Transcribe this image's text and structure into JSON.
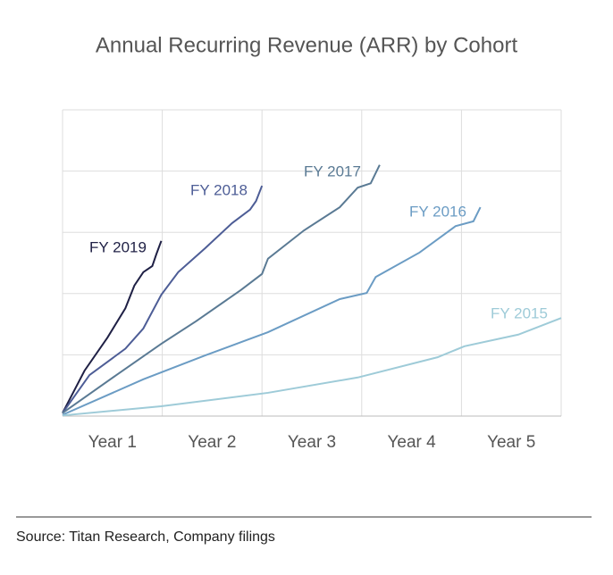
{
  "chart_data": {
    "type": "line",
    "title": "Annual Recurring Revenue (ARR) by Cohort",
    "source": "Source: Titan Research, Company filings",
    "x_labels": [
      "Year 1",
      "Year 2",
      "Year 3",
      "Year 4",
      "Year 5"
    ],
    "xlim": [
      0,
      5
    ],
    "xticks": [
      0,
      1,
      2,
      3,
      4,
      5
    ],
    "ylim": [
      0,
      5
    ],
    "yticks": [
      0,
      1,
      2,
      3,
      4,
      5
    ],
    "grid": true,
    "show_y_tick_labels": false,
    "series": [
      {
        "name": "FY 2019",
        "color": "#1f2045",
        "x": [
          0,
          0.22,
          0.45,
          0.63,
          0.72,
          0.81,
          0.9,
          0.94,
          0.99
        ],
        "values": [
          0.05,
          0.74,
          1.28,
          1.76,
          2.13,
          2.35,
          2.45,
          2.64,
          2.86
        ]
      },
      {
        "name": "FY 2018",
        "color": "#4d5d96",
        "x": [
          0,
          0.27,
          0.63,
          0.81,
          0.99,
          1.16,
          1.43,
          1.7,
          1.88,
          1.94,
          2.0
        ],
        "values": [
          0.05,
          0.67,
          1.1,
          1.43,
          1.98,
          2.35,
          2.74,
          3.15,
          3.37,
          3.51,
          3.76
        ]
      },
      {
        "name": "FY 2017",
        "color": "#5a7a94",
        "x": [
          0,
          0.54,
          0.99,
          1.34,
          1.79,
          2.0,
          2.06,
          2.42,
          2.78,
          2.96,
          3.09,
          3.18
        ],
        "values": [
          0.05,
          0.67,
          1.18,
          1.55,
          2.06,
          2.32,
          2.57,
          3.03,
          3.41,
          3.73,
          3.8,
          4.1
        ]
      },
      {
        "name": "FY 2016",
        "color": "#6b9cc4",
        "x": [
          0,
          0.81,
          1.43,
          2.06,
          2.78,
          3.05,
          3.14,
          3.58,
          3.94,
          4.12,
          4.19
        ],
        "values": [
          0.02,
          0.6,
          0.99,
          1.37,
          1.91,
          2.01,
          2.27,
          2.67,
          3.1,
          3.18,
          3.41
        ]
      },
      {
        "name": "FY 2015",
        "color": "#9ecbd8",
        "x": [
          0,
          0.99,
          2.06,
          2.96,
          3.76,
          4.03,
          4.57,
          5.0
        ],
        "values": [
          0.01,
          0.16,
          0.38,
          0.63,
          0.96,
          1.14,
          1.33,
          1.6
        ]
      }
    ]
  }
}
